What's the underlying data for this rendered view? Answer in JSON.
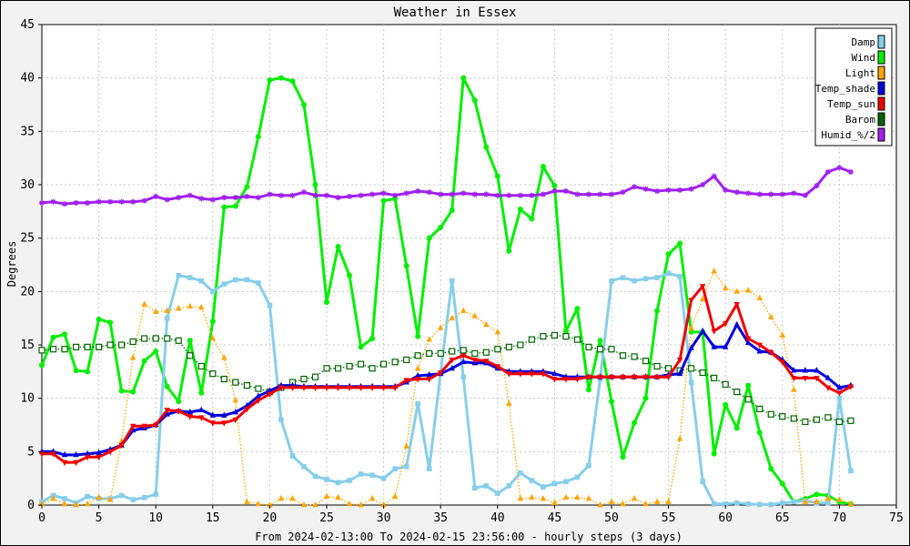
{
  "chart_data": {
    "type": "line",
    "title": "Weather in Essex",
    "xlabel": "From 2024-02-13:00 To 2024-02-15 23:56:00 - hourly steps (3 days)",
    "ylabel": "Degrees",
    "xlim": [
      0,
      75
    ],
    "ylim": [
      0,
      45
    ],
    "x_ticks": [
      "0",
      "5",
      "10",
      "15",
      "20",
      "25",
      "30",
      "35",
      "40",
      "45",
      "50",
      "55",
      "60",
      "65",
      "70",
      "75"
    ],
    "y_ticks": [
      "0",
      "5",
      "10",
      "15",
      "20",
      "25",
      "30",
      "35",
      "40",
      "45"
    ],
    "grid": true,
    "legend_position": "top-right",
    "series": [
      {
        "name": "Damp",
        "color": "#87ceeb",
        "marker": "square",
        "style": "solid",
        "values": [
          0.3,
          0.9,
          0.6,
          0.2,
          0.8,
          0.6,
          0.6,
          0.9,
          0.5,
          0.7,
          1.0,
          17.5,
          21.5,
          21.3,
          21.0,
          20.0,
          20.7,
          21.1,
          21.1,
          20.8,
          18.7,
          8.0,
          4.6,
          3.6,
          2.7,
          2.4,
          2.1,
          2.3,
          2.9,
          2.8,
          2.5,
          3.4,
          3.6,
          9.5,
          3.4,
          12.4,
          21.0,
          12.0,
          1.6,
          1.8,
          1.1,
          1.8,
          3.0,
          2.3,
          1.7,
          2.0,
          2.2,
          2.6,
          3.7,
          11.8,
          21.0,
          21.3,
          21.0,
          21.2,
          21.3,
          21.7,
          21.4,
          11.5,
          2.2,
          0.1,
          0.1,
          0.2,
          0.1,
          0.05,
          0.05,
          0.2,
          0.3,
          0.4,
          0.2,
          0.2,
          10.0,
          3.2
        ]
      },
      {
        "name": "Wind",
        "color": "#00ee00",
        "marker": "circle",
        "style": "solid",
        "values": [
          13.1,
          15.7,
          16.0,
          12.6,
          12.5,
          17.4,
          17.1,
          10.7,
          10.6,
          13.5,
          14.4,
          11.1,
          9.7,
          15.4,
          10.5,
          17.2,
          27.9,
          28.0,
          29.8,
          34.5,
          39.8,
          40.0,
          39.7,
          37.5,
          30.0,
          19.0,
          24.2,
          21.5,
          14.8,
          15.6,
          28.5,
          28.7,
          22.4,
          15.8,
          25.0,
          26.0,
          27.6,
          40.0,
          37.9,
          33.5,
          30.8,
          23.8,
          27.7,
          26.8,
          31.7,
          29.9,
          16.3,
          18.4,
          10.8,
          15.4,
          9.7,
          4.5,
          7.7,
          10.0,
          18.2,
          23.5,
          24.5,
          16.2,
          16.2,
          4.8,
          9.4,
          7.2,
          11.2,
          6.8,
          3.4,
          2.0,
          0.3,
          0.6,
          1.0,
          0.9,
          0.3,
          0.1
        ]
      },
      {
        "name": "Light",
        "color": "#ffa500",
        "marker": "triangle",
        "style": "dotted",
        "values": [
          0.1,
          0.6,
          0.1,
          0.0,
          0.1,
          0.7,
          0.5,
          6.0,
          13.8,
          18.8,
          18.1,
          18.2,
          18.4,
          18.6,
          18.5,
          15.6,
          13.8,
          9.8,
          0.3,
          0.1,
          0.0,
          0.6,
          0.6,
          0.0,
          0.0,
          0.8,
          0.7,
          0.1,
          0.0,
          0.6,
          0.0,
          0.8,
          5.5,
          12.8,
          15.5,
          16.6,
          17.5,
          18.2,
          17.7,
          16.9,
          16.2,
          9.5,
          0.6,
          0.7,
          0.6,
          0.2,
          0.7,
          0.7,
          0.6,
          0.0,
          0.3,
          0.1,
          0.6,
          0.1,
          0.3,
          0.3,
          6.2,
          16.6,
          19.3,
          21.9,
          20.3,
          20.0,
          20.1,
          19.4,
          17.6,
          15.9,
          10.8,
          0.3,
          0.3,
          0.6,
          0.5,
          0.1
        ]
      },
      {
        "name": "Temp_shade",
        "color": "#0000dd",
        "marker": "triangle",
        "style": "solid",
        "values": [
          5.0,
          5.0,
          4.7,
          4.7,
          4.8,
          4.9,
          5.2,
          5.6,
          7.0,
          7.2,
          7.5,
          8.5,
          8.8,
          8.7,
          8.9,
          8.4,
          8.4,
          8.7,
          9.3,
          10.2,
          10.7,
          11.2,
          11.2,
          11.1,
          11.1,
          11.1,
          11.1,
          11.1,
          11.1,
          11.1,
          11.1,
          11.1,
          11.5,
          12.1,
          12.2,
          12.3,
          12.8,
          13.4,
          13.3,
          13.3,
          12.8,
          12.5,
          12.5,
          12.5,
          12.5,
          12.3,
          12.0,
          12.0,
          12.0,
          12.0,
          12.0,
          12.0,
          12.0,
          12.0,
          12.0,
          12.2,
          12.3,
          14.7,
          16.3,
          14.8,
          14.8,
          16.9,
          15.2,
          14.4,
          14.3,
          13.6,
          12.6,
          12.6,
          12.6,
          11.9,
          11.0,
          11.2
        ]
      },
      {
        "name": "Temp_sun",
        "color": "#ee0000",
        "marker": "triangle-down",
        "style": "solid",
        "values": [
          4.8,
          4.8,
          4.0,
          4.0,
          4.5,
          4.5,
          5.0,
          5.6,
          7.4,
          7.4,
          7.5,
          8.9,
          8.8,
          8.3,
          8.2,
          7.7,
          7.7,
          8.0,
          9.0,
          9.8,
          10.4,
          11.0,
          11.0,
          11.0,
          11.0,
          11.0,
          11.0,
          11.0,
          11.0,
          11.0,
          11.0,
          11.0,
          11.7,
          11.8,
          11.8,
          12.4,
          13.6,
          14.0,
          13.6,
          13.5,
          13.0,
          12.3,
          12.3,
          12.3,
          12.3,
          11.8,
          11.8,
          11.8,
          12.0,
          12.0,
          12.0,
          12.0,
          12.0,
          12.0,
          12.0,
          12.0,
          13.6,
          19.2,
          20.5,
          16.3,
          17.0,
          18.8,
          15.6,
          15.0,
          14.3,
          13.4,
          11.9,
          11.9,
          11.9,
          11.0,
          10.5,
          11.1
        ]
      },
      {
        "name": "Barom",
        "color": "#006400",
        "marker": "square-open",
        "style": "dotted",
        "values": [
          14.5,
          14.6,
          14.6,
          14.8,
          14.8,
          14.8,
          15.0,
          15.0,
          15.3,
          15.6,
          15.6,
          15.6,
          15.4,
          14.0,
          13.0,
          12.3,
          11.8,
          11.5,
          11.2,
          10.9,
          10.6,
          11.0,
          11.5,
          11.8,
          12.0,
          12.8,
          12.8,
          13.0,
          13.2,
          12.8,
          13.2,
          13.4,
          13.6,
          14.0,
          14.2,
          14.2,
          14.4,
          14.5,
          14.2,
          14.3,
          14.6,
          14.8,
          15.0,
          15.5,
          15.8,
          15.9,
          15.8,
          15.5,
          14.8,
          14.6,
          14.6,
          14.0,
          13.9,
          13.5,
          13.0,
          12.8,
          12.6,
          12.8,
          12.4,
          11.9,
          11.3,
          10.6,
          9.9,
          9.0,
          8.5,
          8.3,
          8.1,
          7.8,
          8.0,
          8.2,
          7.8,
          7.9
        ]
      },
      {
        "name": "Humid_%/2",
        "color": "#a020f0",
        "marker": "star",
        "style": "solid",
        "values": [
          28.3,
          28.4,
          28.2,
          28.3,
          28.3,
          28.4,
          28.4,
          28.4,
          28.4,
          28.5,
          28.9,
          28.6,
          28.8,
          29.0,
          28.7,
          28.6,
          28.8,
          28.8,
          28.9,
          28.8,
          29.1,
          29.0,
          29.0,
          29.3,
          29.0,
          29.0,
          28.8,
          28.9,
          29.0,
          29.1,
          29.2,
          29.0,
          29.2,
          29.4,
          29.3,
          29.1,
          29.1,
          29.2,
          29.1,
          29.1,
          29.0,
          29.0,
          29.0,
          29.0,
          29.1,
          29.4,
          29.4,
          29.1,
          29.1,
          29.1,
          29.1,
          29.3,
          29.8,
          29.6,
          29.4,
          29.5,
          29.5,
          29.6,
          30.0,
          30.8,
          29.5,
          29.3,
          29.2,
          29.1,
          29.1,
          29.1,
          29.2,
          29.0,
          29.9,
          31.2,
          31.6,
          31.2
        ]
      }
    ]
  }
}
